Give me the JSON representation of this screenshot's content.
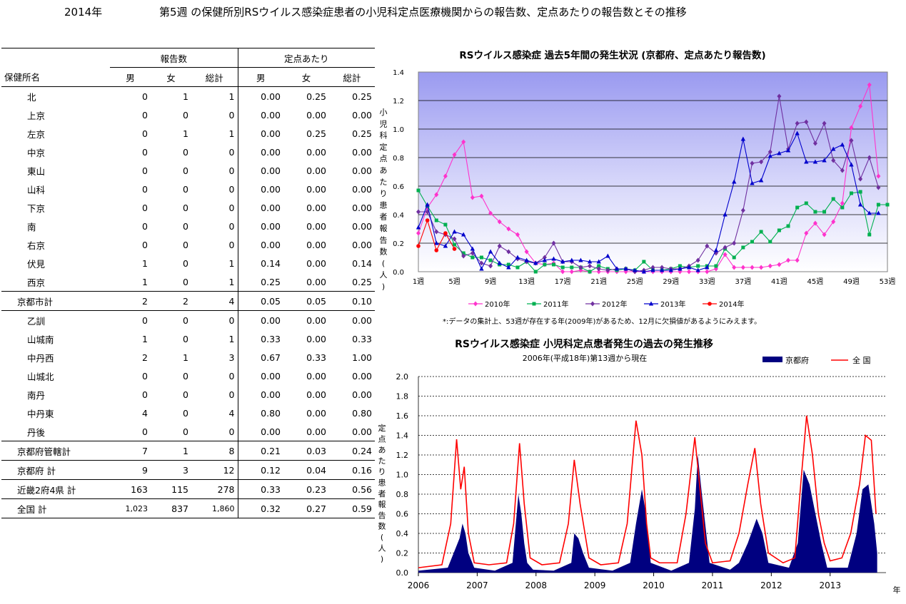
{
  "header": {
    "year": "2014年",
    "title": "第5週 の保健所別RSウイルス感染症患者の小児科定点医療機関からの報告数、定点あたりの報告数とその推移"
  },
  "table": {
    "group_reports": "報告数",
    "group_per": "定点あたり",
    "col_name": "保健所名",
    "sub": [
      "男",
      "女",
      "総計",
      "男",
      "女",
      "総計"
    ],
    "rows": [
      {
        "name": "北",
        "v": [
          "0",
          "1",
          "1",
          "0.00",
          "0.25",
          "0.25"
        ]
      },
      {
        "name": "上京",
        "v": [
          "0",
          "0",
          "0",
          "0.00",
          "0.00",
          "0.00"
        ]
      },
      {
        "name": "左京",
        "v": [
          "0",
          "1",
          "1",
          "0.00",
          "0.25",
          "0.25"
        ]
      },
      {
        "name": "中京",
        "v": [
          "0",
          "0",
          "0",
          "0.00",
          "0.00",
          "0.00"
        ]
      },
      {
        "name": "東山",
        "v": [
          "0",
          "0",
          "0",
          "0.00",
          "0.00",
          "0.00"
        ]
      },
      {
        "name": "山科",
        "v": [
          "0",
          "0",
          "0",
          "0.00",
          "0.00",
          "0.00"
        ]
      },
      {
        "name": "下京",
        "v": [
          "0",
          "0",
          "0",
          "0.00",
          "0.00",
          "0.00"
        ]
      },
      {
        "name": "南",
        "v": [
          "0",
          "0",
          "0",
          "0.00",
          "0.00",
          "0.00"
        ]
      },
      {
        "name": "右京",
        "v": [
          "0",
          "0",
          "0",
          "0.00",
          "0.00",
          "0.00"
        ]
      },
      {
        "name": "伏見",
        "v": [
          "1",
          "0",
          "1",
          "0.14",
          "0.00",
          "0.14"
        ]
      },
      {
        "name": "西京",
        "v": [
          "1",
          "0",
          "1",
          "0.25",
          "0.00",
          "0.25"
        ]
      },
      {
        "name": "京都市計",
        "v": [
          "2",
          "2",
          "4",
          "0.05",
          "0.05",
          "0.10"
        ],
        "sum": true
      },
      {
        "name": "乙訓",
        "v": [
          "0",
          "0",
          "0",
          "0.00",
          "0.00",
          "0.00"
        ]
      },
      {
        "name": "山城南",
        "v": [
          "1",
          "0",
          "1",
          "0.33",
          "0.00",
          "0.33"
        ]
      },
      {
        "name": "中丹西",
        "v": [
          "2",
          "1",
          "3",
          "0.67",
          "0.33",
          "1.00"
        ]
      },
      {
        "name": "山城北",
        "v": [
          "0",
          "0",
          "0",
          "0.00",
          "0.00",
          "0.00"
        ]
      },
      {
        "name": "南丹",
        "v": [
          "0",
          "0",
          "0",
          "0.00",
          "0.00",
          "0.00"
        ]
      },
      {
        "name": "中丹東",
        "v": [
          "4",
          "0",
          "4",
          "0.80",
          "0.00",
          "0.80"
        ]
      },
      {
        "name": "丹後",
        "v": [
          "0",
          "0",
          "0",
          "0.00",
          "0.00",
          "0.00"
        ]
      },
      {
        "name": "京都府管轄計",
        "v": [
          "7",
          "1",
          "8",
          "0.21",
          "0.03",
          "0.24"
        ],
        "sum": true
      },
      {
        "name": "京都府 計",
        "v": [
          "9",
          "3",
          "12",
          "0.12",
          "0.04",
          "0.16"
        ],
        "sum": true
      },
      {
        "name": "近畿2府4県 計",
        "v": [
          "163",
          "115",
          "278",
          "0.33",
          "0.23",
          "0.56"
        ],
        "sum": true
      },
      {
        "name": "全国 計",
        "v": [
          "1,023",
          "837",
          "1,860",
          "0.32",
          "0.27",
          "0.59"
        ],
        "sum": true
      }
    ]
  },
  "chart_data": [
    {
      "type": "line",
      "title": "RSウイルス感染症 過去5年間の発生状況 (京都府、定点あたり報告数)",
      "ylabel": "小児科定点あたり患者報告数(人)",
      "xlabel": "",
      "ylim": [
        0,
        1.4
      ],
      "yticks": [
        "0.0",
        "0.2",
        "0.4",
        "0.6",
        "0.8",
        "1.0",
        "1.2",
        "1.4"
      ],
      "xticks": [
        "1週",
        "5週",
        "9週",
        "13週",
        "17週",
        "21週",
        "25週",
        "29週",
        "33週",
        "37週",
        "41週",
        "45週",
        "49週",
        "53週"
      ],
      "note": "*:データの集計上、53週が存在する年(2009年)があるため、12月に欠損値があるようにみえます。",
      "legend_position": "bottom",
      "grid": true,
      "series": [
        {
          "name": "2010年",
          "color": "#ff33cc",
          "marker": "diamond",
          "x": [
            1,
            2,
            3,
            4,
            5,
            6,
            7,
            8,
            9,
            10,
            11,
            12,
            13,
            14,
            15,
            16,
            17,
            18,
            19,
            20,
            21,
            22,
            23,
            24,
            25,
            26,
            27,
            28,
            29,
            30,
            31,
            32,
            33,
            34,
            35,
            36,
            37,
            38,
            39,
            40,
            41,
            42,
            43,
            44,
            45,
            46,
            47,
            48,
            49,
            50,
            51,
            52
          ],
          "values": [
            0.27,
            0.45,
            0.54,
            0.67,
            0.82,
            0.91,
            0.52,
            0.53,
            0.41,
            0.35,
            0.3,
            0.26,
            0.14,
            0.06,
            0.05,
            0.06,
            0.0,
            0.0,
            0.01,
            0.0,
            0.0,
            0.0,
            0.0,
            0.0,
            0.0,
            0.0,
            0.0,
            0.0,
            0.0,
            0.0,
            0.0,
            0.0,
            0.0,
            0.02,
            0.12,
            0.03,
            0.03,
            0.03,
            0.03,
            0.04,
            0.05,
            0.08,
            0.08,
            0.27,
            0.34,
            0.26,
            0.35,
            0.48,
            1.01,
            1.16,
            1.31,
            0.67
          ]
        },
        {
          "name": "2011年",
          "color": "#00b050",
          "marker": "square",
          "x": [
            1,
            2,
            3,
            4,
            5,
            6,
            7,
            8,
            9,
            10,
            11,
            12,
            13,
            14,
            15,
            16,
            17,
            18,
            19,
            20,
            21,
            22,
            23,
            24,
            25,
            26,
            27,
            28,
            29,
            30,
            31,
            32,
            33,
            34,
            35,
            36,
            37,
            38,
            39,
            40,
            41,
            42,
            43,
            44,
            45,
            46,
            47,
            48,
            49,
            50,
            51,
            52,
            53
          ],
          "values": [
            0.57,
            0.46,
            0.36,
            0.33,
            0.19,
            0.13,
            0.1,
            0.1,
            0.08,
            0.05,
            0.05,
            0.03,
            0.07,
            0.0,
            0.05,
            0.05,
            0.03,
            0.03,
            0.03,
            0.0,
            0.04,
            0.02,
            0.01,
            0.02,
            0.01,
            0.07,
            0.01,
            0.01,
            0.02,
            0.04,
            0.03,
            0.04,
            0.04,
            0.04,
            0.16,
            0.1,
            0.17,
            0.21,
            0.28,
            0.21,
            0.29,
            0.32,
            0.45,
            0.48,
            0.42,
            0.42,
            0.51,
            0.45,
            0.55,
            0.56,
            0.26,
            0.47,
            0.47
          ]
        },
        {
          "name": "2012年",
          "color": "#7030a0",
          "marker": "diamond",
          "x": [
            1,
            2,
            3,
            4,
            5,
            6,
            7,
            8,
            9,
            10,
            11,
            12,
            13,
            14,
            15,
            16,
            17,
            18,
            19,
            20,
            21,
            22,
            23,
            24,
            25,
            26,
            27,
            28,
            29,
            30,
            31,
            32,
            33,
            34,
            35,
            36,
            37,
            38,
            39,
            40,
            41,
            42,
            43,
            44,
            45,
            46,
            47,
            48,
            49,
            50,
            51,
            52
          ],
          "values": [
            0.42,
            0.42,
            0.28,
            0.26,
            0.23,
            0.11,
            0.13,
            0.06,
            0.04,
            0.18,
            0.14,
            0.09,
            0.07,
            0.06,
            0.1,
            0.2,
            0.07,
            0.07,
            0.03,
            0.04,
            0.02,
            0.01,
            0.02,
            0.02,
            0.0,
            0.01,
            0.03,
            0.03,
            0.02,
            0.02,
            0.04,
            0.08,
            0.18,
            0.13,
            0.17,
            0.2,
            0.43,
            0.76,
            0.77,
            0.84,
            1.23,
            0.86,
            1.04,
            1.05,
            0.9,
            1.04,
            0.78,
            0.71,
            0.92,
            0.65,
            0.8,
            0.59
          ]
        },
        {
          "name": "2013年",
          "color": "#0000cc",
          "marker": "triangle",
          "x": [
            1,
            2,
            3,
            4,
            5,
            6,
            7,
            8,
            9,
            10,
            11,
            12,
            13,
            14,
            15,
            16,
            17,
            18,
            19,
            20,
            21,
            22,
            23,
            24,
            25,
            26,
            27,
            28,
            29,
            30,
            31,
            32,
            33,
            34,
            35,
            36,
            37,
            38,
            39,
            40,
            41,
            42,
            43,
            44,
            45,
            46,
            47,
            48,
            49,
            50,
            51,
            52
          ],
          "values": [
            0.31,
            0.47,
            0.2,
            0.18,
            0.28,
            0.26,
            0.16,
            0.02,
            0.14,
            0.06,
            0.03,
            0.1,
            0.08,
            0.06,
            0.08,
            0.09,
            0.07,
            0.08,
            0.08,
            0.07,
            0.07,
            0.11,
            0.02,
            0.02,
            0.01,
            0.0,
            0.01,
            0.01,
            0.01,
            0.02,
            0.03,
            0.01,
            0.03,
            0.15,
            0.4,
            0.63,
            0.93,
            0.62,
            0.64,
            0.81,
            0.83,
            0.85,
            0.97,
            0.77,
            0.77,
            0.78,
            0.86,
            0.89,
            0.75,
            0.47,
            0.41,
            0.41
          ]
        },
        {
          "name": "2014年",
          "color": "#ff0000",
          "marker": "circle",
          "x": [
            1,
            2,
            3,
            4,
            5
          ],
          "values": [
            0.18,
            0.36,
            0.15,
            0.27,
            0.16
          ]
        }
      ]
    },
    {
      "type": "area",
      "title": "RSウイルス感染症 小児科定点患者発生の過去の発生推移",
      "subtitle": "2006年(平成18年)第13週から現在",
      "ylabel": "定点あたり患者報告数(人)",
      "xlabel": "年",
      "ylim": [
        0,
        2.0
      ],
      "yticks": [
        "0.0",
        "0.2",
        "0.4",
        "0.6",
        "0.8",
        "1.0",
        "1.2",
        "1.4",
        "1.6",
        "1.8",
        "2.0"
      ],
      "xticks": [
        "2006",
        "2007",
        "2008",
        "2009",
        "2010",
        "2011",
        "2012",
        "2013"
      ],
      "legend_position": "top-right",
      "grid": true,
      "series": [
        {
          "name": "京都府",
          "color": "#000080",
          "kind": "area",
          "x": [
            2006.0,
            2006.5,
            2006.7,
            2006.75,
            2006.8,
            2006.85,
            2006.95,
            2007.3,
            2007.6,
            2007.7,
            2007.75,
            2007.8,
            2007.85,
            2007.95,
            2008.3,
            2008.6,
            2008.65,
            2008.72,
            2008.8,
            2008.9,
            2009.3,
            2009.6,
            2009.7,
            2009.8,
            2009.87,
            2009.95,
            2010.3,
            2010.6,
            2010.7,
            2010.75,
            2010.82,
            2010.95,
            2011.3,
            2011.45,
            2011.6,
            2011.75,
            2011.85,
            2011.95,
            2012.3,
            2012.45,
            2012.55,
            2012.65,
            2012.75,
            2012.85,
            2012.95,
            2013.3,
            2013.45,
            2013.55,
            2013.65,
            2013.75,
            2013.8
          ],
          "values": [
            0.02,
            0.05,
            0.35,
            0.5,
            0.4,
            0.2,
            0.05,
            0.02,
            0.1,
            0.8,
            0.6,
            0.3,
            0.1,
            0.03,
            0.02,
            0.1,
            0.4,
            0.35,
            0.2,
            0.05,
            0.02,
            0.1,
            0.5,
            0.85,
            0.6,
            0.1,
            0.02,
            0.1,
            0.65,
            1.2,
            0.8,
            0.1,
            0.03,
            0.1,
            0.3,
            0.55,
            0.4,
            0.1,
            0.05,
            0.3,
            1.05,
            0.9,
            0.6,
            0.3,
            0.05,
            0.05,
            0.4,
            0.85,
            0.9,
            0.5,
            0.2
          ]
        },
        {
          "name": "全 国",
          "color": "#ff0000",
          "kind": "line",
          "x": [
            2006.0,
            2006.4,
            2006.55,
            2006.65,
            2006.72,
            2006.78,
            2006.85,
            2006.95,
            2007.2,
            2007.5,
            2007.62,
            2007.72,
            2007.8,
            2007.9,
            2008.1,
            2008.4,
            2008.55,
            2008.65,
            2008.75,
            2008.9,
            2009.1,
            2009.4,
            2009.55,
            2009.7,
            2009.8,
            2009.88,
            2009.95,
            2010.1,
            2010.4,
            2010.55,
            2010.7,
            2010.78,
            2010.88,
            2011.0,
            2011.3,
            2011.45,
            2011.6,
            2011.72,
            2011.82,
            2011.95,
            2012.2,
            2012.4,
            2012.5,
            2012.6,
            2012.7,
            2012.8,
            2012.9,
            2013.0,
            2013.2,
            2013.35,
            2013.5,
            2013.6,
            2013.7,
            2013.78
          ],
          "values": [
            0.05,
            0.08,
            0.5,
            1.36,
            0.85,
            1.08,
            0.4,
            0.1,
            0.08,
            0.1,
            0.5,
            1.32,
            0.7,
            0.15,
            0.08,
            0.1,
            0.5,
            1.15,
            0.7,
            0.15,
            0.08,
            0.1,
            0.5,
            1.55,
            1.2,
            0.5,
            0.15,
            0.1,
            0.1,
            0.6,
            1.38,
            0.9,
            0.3,
            0.1,
            0.12,
            0.4,
            0.9,
            1.27,
            0.7,
            0.2,
            0.1,
            0.15,
            0.9,
            1.6,
            1.2,
            0.6,
            0.3,
            0.12,
            0.15,
            0.4,
            0.9,
            1.4,
            1.35,
            0.6
          ]
        }
      ]
    }
  ]
}
